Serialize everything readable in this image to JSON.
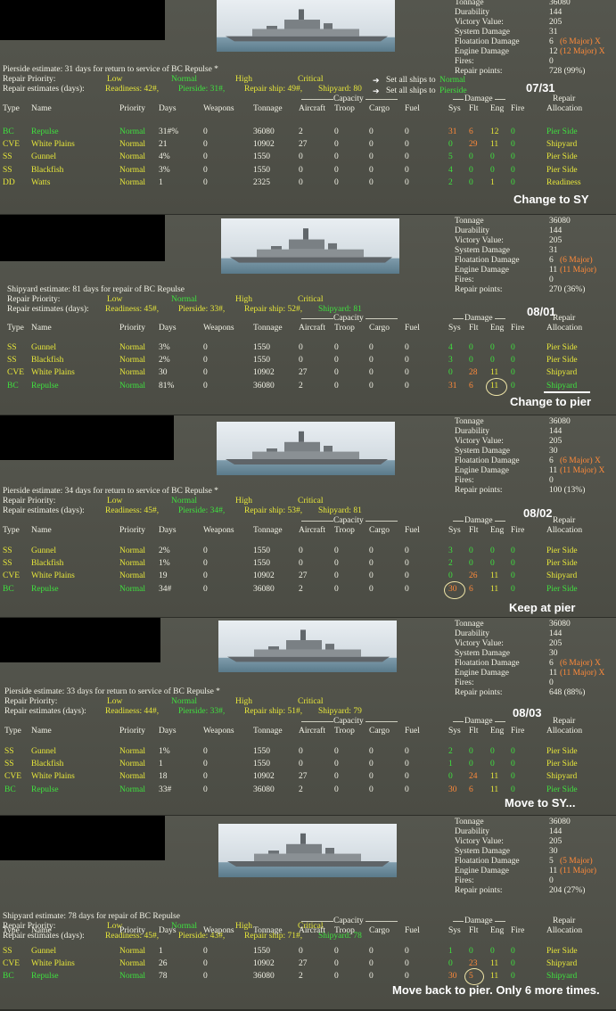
{
  "common_headers": {
    "type": "Type",
    "name": "Name",
    "priority": "Priority",
    "days": "Days",
    "weapons": "Weapons",
    "tonnage": "Tonnage",
    "aircraft": "Aircraft",
    "troop": "Troop",
    "cargo": "Cargo",
    "fuel": "Fuel",
    "sys": "Sys",
    "flt": "Flt",
    "eng": "Eng",
    "fire": "Fire",
    "allocation": "Allocation",
    "capacity": "Capacity",
    "damage": "Damage",
    "repair": "Repair",
    "repair_priority": "Repair Priority:",
    "low": "Low",
    "normal": "Normal",
    "high": "High",
    "critical": "Critical",
    "repair_estimates": "Repair estimates (days):",
    "stat_labels": [
      "Tonnage",
      "Durability",
      "Victory Value:",
      "System Damage",
      "Floatation Damage",
      "Engine Damage",
      "Fires:",
      "Repair points:"
    ]
  },
  "set_all_normal": "Set all ships to",
  "set_all_normal_value": "Normal",
  "set_all_pier": "Set all ships to",
  "set_all_pier_value": "Pierside",
  "panels": [
    {
      "estimate": "Pierside estimate: 31 days for return to service of BC Repulse *",
      "estimates": {
        "readiness": "Readiness: 42#,",
        "pierside": "Pierside: 31#,",
        "repair_ship": "Repair ship: 49#,",
        "shipyard": "Shipyard: 80"
      },
      "date": "07/31",
      "stats": {
        "tonnage": "36080",
        "durability": "144",
        "victory": "205",
        "system": "31",
        "float": "6",
        "float_major": "(6 Major) X",
        "engine": "12",
        "engine_major": "(12 Major) X",
        "fires": "0",
        "repair_points": "728 (99%)"
      },
      "rows": [
        {
          "type": "BC",
          "name": "Repulse",
          "priority": "Normal",
          "days": "31#%",
          "weapons": "0",
          "tonnage": "36080",
          "aircraft": "2",
          "troop": "0",
          "cargo": "0",
          "fuel": "0",
          "sys": "31",
          "flt": "6",
          "eng": "12",
          "fire": "0",
          "alloc": "Pier Side"
        },
        {
          "type": "CVE",
          "name": "White Plains",
          "priority": "Normal",
          "days": "21",
          "weapons": "0",
          "tonnage": "10902",
          "aircraft": "27",
          "troop": "0",
          "cargo": "0",
          "fuel": "0",
          "sys": "0",
          "flt": "29",
          "eng": "11",
          "fire": "0",
          "alloc": "Shipyard"
        },
        {
          "type": "SS",
          "name": "Gunnel",
          "priority": "Normal",
          "days": "4%",
          "weapons": "0",
          "tonnage": "1550",
          "aircraft": "0",
          "troop": "0",
          "cargo": "0",
          "fuel": "0",
          "sys": "5",
          "flt": "0",
          "eng": "0",
          "fire": "0",
          "alloc": "Pier Side"
        },
        {
          "type": "SS",
          "name": "Blackfish",
          "priority": "Normal",
          "days": "3%",
          "weapons": "0",
          "tonnage": "1550",
          "aircraft": "0",
          "troop": "0",
          "cargo": "0",
          "fuel": "0",
          "sys": "4",
          "flt": "0",
          "eng": "0",
          "fire": "0",
          "alloc": "Pier Side"
        },
        {
          "type": "DD",
          "name": "Watts",
          "priority": "Normal",
          "days": "1",
          "weapons": "0",
          "tonnage": "2325",
          "aircraft": "0",
          "troop": "0",
          "cargo": "0",
          "fuel": "0",
          "sys": "2",
          "flt": "0",
          "eng": "1",
          "fire": "0",
          "alloc": "Readiness"
        }
      ],
      "note": "Change to SY"
    },
    {
      "estimate": "Shipyard estimate: 81 days for repair of BC Repulse",
      "estimates": {
        "readiness": "Readiness: 45#,",
        "pierside": "Pierside: 33#,",
        "repair_ship": "Repair ship: 52#,",
        "shipyard": "Shipyard: 81"
      },
      "date": "08/01",
      "stats": {
        "tonnage": "36080",
        "durability": "144",
        "victory": "205",
        "system": "31",
        "float": "6",
        "float_major": "(6 Major)",
        "engine": "11",
        "engine_major": "(11 Major)",
        "fires": "0",
        "repair_points": "270 (36%)"
      },
      "rows": [
        {
          "type": "SS",
          "name": "Gunnel",
          "priority": "Normal",
          "days": "3%",
          "weapons": "0",
          "tonnage": "1550",
          "aircraft": "0",
          "troop": "0",
          "cargo": "0",
          "fuel": "0",
          "sys": "4",
          "flt": "0",
          "eng": "0",
          "fire": "0",
          "alloc": "Pier Side"
        },
        {
          "type": "SS",
          "name": "Blackfish",
          "priority": "Normal",
          "days": "2%",
          "weapons": "0",
          "tonnage": "1550",
          "aircraft": "0",
          "troop": "0",
          "cargo": "0",
          "fuel": "0",
          "sys": "3",
          "flt": "0",
          "eng": "0",
          "fire": "0",
          "alloc": "Pier Side"
        },
        {
          "type": "CVE",
          "name": "White Plains",
          "priority": "Normal",
          "days": "30",
          "weapons": "0",
          "tonnage": "10902",
          "aircraft": "27",
          "troop": "0",
          "cargo": "0",
          "fuel": "0",
          "sys": "0",
          "flt": "28",
          "eng": "11",
          "fire": "0",
          "alloc": "Shipyard"
        },
        {
          "type": "BC",
          "name": "Repulse",
          "priority": "Normal",
          "days": "81%",
          "weapons": "0",
          "tonnage": "36080",
          "aircraft": "2",
          "troop": "0",
          "cargo": "0",
          "fuel": "0",
          "sys": "31",
          "flt": "6",
          "eng": "11",
          "fire": "0",
          "alloc": "Shipyard"
        }
      ],
      "note": "Change to pier"
    },
    {
      "estimate": "Pierside estimate: 34 days for return to service of BC Repulse *",
      "estimates": {
        "readiness": "Readiness: 45#,",
        "pierside": "Pierside: 34#,",
        "repair_ship": "Repair ship: 53#,",
        "shipyard": "Shipyard: 81"
      },
      "date": "08/02",
      "stats": {
        "tonnage": "36080",
        "durability": "144",
        "victory": "205",
        "system": "30",
        "float": "6",
        "float_major": "(6 Major) X",
        "engine": "11",
        "engine_major": "(11 Major) X",
        "fires": "0",
        "repair_points": "100 (13%)"
      },
      "rows": [
        {
          "type": "SS",
          "name": "Gunnel",
          "priority": "Normal",
          "days": "2%",
          "weapons": "0",
          "tonnage": "1550",
          "aircraft": "0",
          "troop": "0",
          "cargo": "0",
          "fuel": "0",
          "sys": "3",
          "flt": "0",
          "eng": "0",
          "fire": "0",
          "alloc": "Pier Side"
        },
        {
          "type": "SS",
          "name": "Blackfish",
          "priority": "Normal",
          "days": "1%",
          "weapons": "0",
          "tonnage": "1550",
          "aircraft": "0",
          "troop": "0",
          "cargo": "0",
          "fuel": "0",
          "sys": "2",
          "flt": "0",
          "eng": "0",
          "fire": "0",
          "alloc": "Pier Side"
        },
        {
          "type": "CVE",
          "name": "White Plains",
          "priority": "Normal",
          "days": "19",
          "weapons": "0",
          "tonnage": "10902",
          "aircraft": "27",
          "troop": "0",
          "cargo": "0",
          "fuel": "0",
          "sys": "0",
          "flt": "26",
          "eng": "11",
          "fire": "0",
          "alloc": "Shipyard"
        },
        {
          "type": "BC",
          "name": "Repulse",
          "priority": "Normal",
          "days": "34#",
          "weapons": "0",
          "tonnage": "36080",
          "aircraft": "2",
          "troop": "0",
          "cargo": "0",
          "fuel": "0",
          "sys": "30",
          "flt": "6",
          "eng": "11",
          "fire": "0",
          "alloc": "Pier Side"
        }
      ],
      "note": "Keep at pier"
    },
    {
      "estimate": "Pierside estimate: 33 days for return to service of BC Repulse *",
      "estimates": {
        "readiness": "Readiness: 44#,",
        "pierside": "Pierside: 33#,",
        "repair_ship": "Repair ship: 51#,",
        "shipyard": "Shipyard: 79"
      },
      "date": "08/03",
      "stats": {
        "tonnage": "36080",
        "durability": "144",
        "victory": "205",
        "system": "30",
        "float": "6",
        "float_major": "(6 Major) X",
        "engine": "11",
        "engine_major": "(11 Major) X",
        "fires": "0",
        "repair_points": "648 (88%)"
      },
      "rows": [
        {
          "type": "SS",
          "name": "Gunnel",
          "priority": "Normal",
          "days": "1%",
          "weapons": "0",
          "tonnage": "1550",
          "aircraft": "0",
          "troop": "0",
          "cargo": "0",
          "fuel": "0",
          "sys": "2",
          "flt": "0",
          "eng": "0",
          "fire": "0",
          "alloc": "Pier Side"
        },
        {
          "type": "SS",
          "name": "Blackfish",
          "priority": "Normal",
          "days": "1",
          "weapons": "0",
          "tonnage": "1550",
          "aircraft": "0",
          "troop": "0",
          "cargo": "0",
          "fuel": "0",
          "sys": "1",
          "flt": "0",
          "eng": "0",
          "fire": "0",
          "alloc": "Pier Side"
        },
        {
          "type": "CVE",
          "name": "White Plains",
          "priority": "Normal",
          "days": "18",
          "weapons": "0",
          "tonnage": "10902",
          "aircraft": "27",
          "troop": "0",
          "cargo": "0",
          "fuel": "0",
          "sys": "0",
          "flt": "24",
          "eng": "11",
          "fire": "0",
          "alloc": "Shipyard"
        },
        {
          "type": "BC",
          "name": "Repulse",
          "priority": "Normal",
          "days": "33#",
          "weapons": "0",
          "tonnage": "36080",
          "aircraft": "2",
          "troop": "0",
          "cargo": "0",
          "fuel": "0",
          "sys": "30",
          "flt": "6",
          "eng": "11",
          "fire": "0",
          "alloc": "Pier Side"
        }
      ],
      "note": "Move to SY..."
    },
    {
      "estimate": "Shipyard estimate: 78 days for repair of BC Repulse",
      "estimates": {
        "readiness": "Readiness: 45#,",
        "pierside": "Pierside: 43#,",
        "repair_ship": "Repair ship: 71#,",
        "shipyard": "Shipyard: 78"
      },
      "date": "",
      "stats": {
        "tonnage": "36080",
        "durability": "144",
        "victory": "205",
        "system": "30",
        "float": "5",
        "float_major": "(5 Major)",
        "engine": "11",
        "engine_major": "(11 Major)",
        "fires": "0",
        "repair_points": "204 (27%)"
      },
      "rows": [
        {
          "type": "SS",
          "name": "Gunnel",
          "priority": "Normal",
          "days": "1",
          "weapons": "0",
          "tonnage": "1550",
          "aircraft": "0",
          "troop": "0",
          "cargo": "0",
          "fuel": "0",
          "sys": "1",
          "flt": "0",
          "eng": "0",
          "fire": "0",
          "alloc": "Pier Side"
        },
        {
          "type": "CVE",
          "name": "White Plains",
          "priority": "Normal",
          "days": "26",
          "weapons": "0",
          "tonnage": "10902",
          "aircraft": "27",
          "troop": "0",
          "cargo": "0",
          "fuel": "0",
          "sys": "0",
          "flt": "23",
          "eng": "11",
          "fire": "0",
          "alloc": "Shipyard"
        },
        {
          "type": "BC",
          "name": "Repulse",
          "priority": "Normal",
          "days": "78",
          "weapons": "0",
          "tonnage": "36080",
          "aircraft": "2",
          "troop": "0",
          "cargo": "0",
          "fuel": "0",
          "sys": "30",
          "flt": "5",
          "eng": "11",
          "fire": "0",
          "alloc": "Shipyard"
        }
      ],
      "note": "Move back to pier. Only 6 more times."
    }
  ]
}
